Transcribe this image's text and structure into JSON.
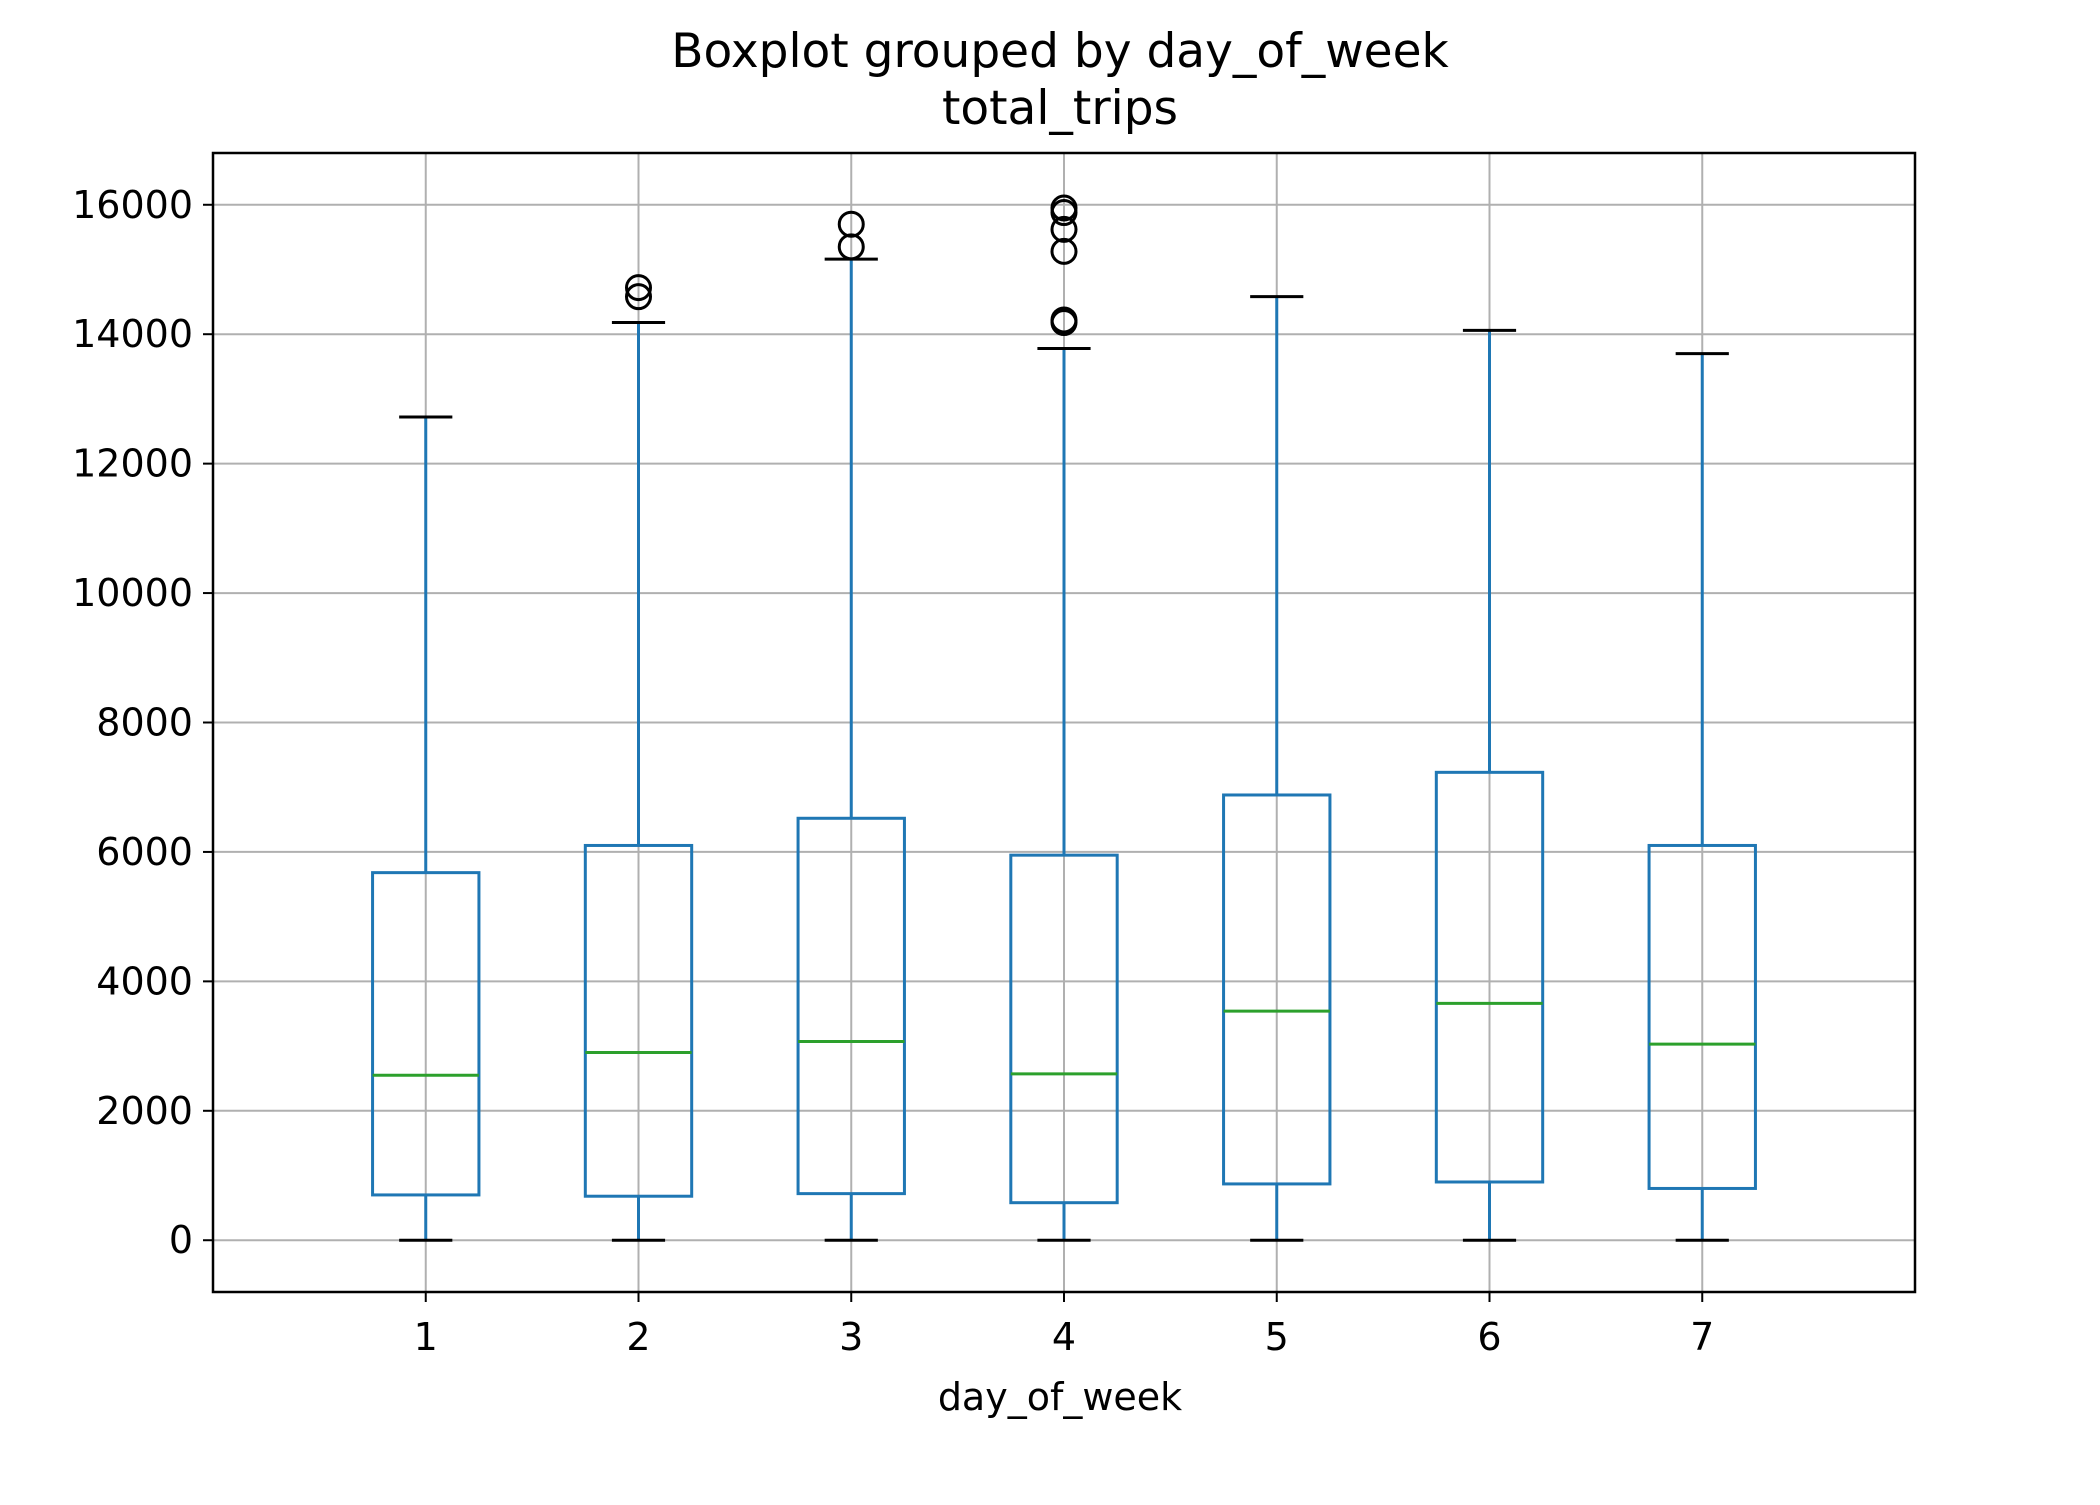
{
  "chart_data": {
    "type": "boxplot",
    "title": "Boxplot grouped by day_of_week",
    "subtitle": "total_trips",
    "xlabel": "day_of_week",
    "ylabel": "",
    "ylim": [
      -800,
      16800
    ],
    "yticks": [
      0,
      2000,
      4000,
      6000,
      8000,
      10000,
      12000,
      14000,
      16000
    ],
    "grid": true,
    "categories": [
      "1",
      "2",
      "3",
      "4",
      "5",
      "6",
      "7"
    ],
    "boxes": [
      {
        "category": "1",
        "whisker_low": 0,
        "q1": 700,
        "median": 2550,
        "q3": 5680,
        "whisker_high": 12720,
        "outliers": []
      },
      {
        "category": "2",
        "whisker_low": 0,
        "q1": 680,
        "median": 2900,
        "q3": 6100,
        "whisker_high": 14180,
        "outliers": [
          14580,
          14720
        ]
      },
      {
        "category": "3",
        "whisker_low": 0,
        "q1": 720,
        "median": 3070,
        "q3": 6520,
        "whisker_high": 15160,
        "outliers": [
          15350,
          15700
        ]
      },
      {
        "category": "4",
        "whisker_low": 0,
        "q1": 580,
        "median": 2570,
        "q3": 5950,
        "whisker_high": 13780,
        "outliers": [
          14180,
          14220,
          15280,
          15620,
          15880,
          15950
        ]
      },
      {
        "category": "5",
        "whisker_low": 0,
        "q1": 870,
        "median": 3540,
        "q3": 6880,
        "whisker_high": 14580,
        "outliers": []
      },
      {
        "category": "6",
        "whisker_low": 0,
        "q1": 900,
        "median": 3660,
        "q3": 7230,
        "whisker_high": 14060,
        "outliers": []
      },
      {
        "category": "7",
        "whisker_low": 0,
        "q1": 800,
        "median": 3030,
        "q3": 6100,
        "whisker_high": 13700,
        "outliers": []
      }
    ],
    "colors": {
      "box": "#1f77b4",
      "median": "#2ca02c",
      "cap": "#000000",
      "outlier": "#000000",
      "grid": "#b0b0b0",
      "frame": "#000000"
    }
  }
}
